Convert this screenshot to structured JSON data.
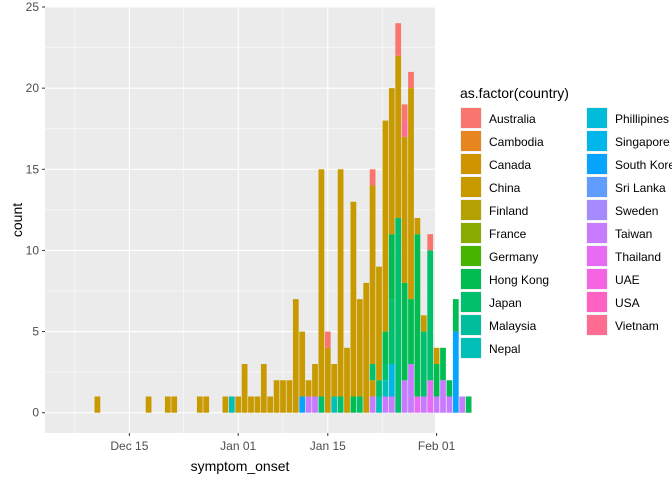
{
  "chart_data": {
    "type": "bar",
    "stacked": true,
    "xlabel": "symptom_onset",
    "ylabel": "count",
    "ylim": [
      -1.25,
      25
    ],
    "yticks": [
      0,
      5,
      10,
      15,
      20,
      25
    ],
    "xlim": [
      "2019-12-09",
      "2020-02-04"
    ],
    "xticks": [
      {
        "date": "2019-12-15",
        "label": "Dec 15"
      },
      {
        "date": "2020-01-01",
        "label": "Jan 01"
      },
      {
        "date": "2020-01-15",
        "label": "Jan 15"
      },
      {
        "date": "2020-02-01",
        "label": "Feb 01"
      }
    ],
    "legend_title": "as.factor(country)",
    "legend_placement": "right",
    "grid": true,
    "countries": [
      "Australia",
      "Cambodia",
      "Canada",
      "China",
      "Finland",
      "France",
      "Germany",
      "Hong Kong",
      "Japan",
      "Malaysia",
      "Nepal",
      "Phillipines",
      "Singapore",
      "South Korea",
      "Sri Lanka",
      "Sweden",
      "Taiwan",
      "Thailand",
      "UAE",
      "USA",
      "Vietnam"
    ],
    "colors": {
      "Australia": "#F8766D",
      "Cambodia": "#E7851E",
      "Canada": "#D09400",
      "China": "#C89A00",
      "Finland": "#B2A100",
      "France": "#8AAB00",
      "Germany": "#45B500",
      "Hong Kong": "#00BC51",
      "Japan": "#00C06B",
      "Malaysia": "#00BD9C",
      "Nepal": "#00C0B8",
      "Phillipines": "#00BCD8",
      "Singapore": "#00B6EB",
      "South Korea": "#06A4FF",
      "Sri Lanka": "#619CFF",
      "Sweden": "#A58AFF",
      "Taiwan": "#C77CFF",
      "Thailand": "#E76BF3",
      "UAE": "#F564E3",
      "USA": "#FF61C3",
      "Vietnam": "#FF6C91"
    },
    "series": [
      {
        "date": "2019-12-10",
        "segments": [
          [
            "China",
            1
          ]
        ]
      },
      {
        "date": "2019-12-18",
        "segments": [
          [
            "China",
            1
          ]
        ]
      },
      {
        "date": "2019-12-21",
        "segments": [
          [
            "China",
            1
          ]
        ]
      },
      {
        "date": "2019-12-22",
        "segments": [
          [
            "China",
            1
          ]
        ]
      },
      {
        "date": "2019-12-26",
        "segments": [
          [
            "China",
            1
          ]
        ]
      },
      {
        "date": "2019-12-27",
        "segments": [
          [
            "China",
            1
          ]
        ]
      },
      {
        "date": "2019-12-30",
        "segments": [
          [
            "China",
            1
          ]
        ]
      },
      {
        "date": "2019-12-31",
        "segments": [
          [
            "Nepal",
            1
          ]
        ]
      },
      {
        "date": "2020-01-01",
        "segments": [
          [
            "China",
            1
          ]
        ]
      },
      {
        "date": "2020-01-02",
        "segments": [
          [
            "China",
            3
          ]
        ]
      },
      {
        "date": "2020-01-03",
        "segments": [
          [
            "China",
            1
          ]
        ]
      },
      {
        "date": "2020-01-04",
        "segments": [
          [
            "China",
            1
          ]
        ]
      },
      {
        "date": "2020-01-05",
        "segments": [
          [
            "China",
            3
          ]
        ]
      },
      {
        "date": "2020-01-06",
        "segments": [
          [
            "China",
            1
          ]
        ]
      },
      {
        "date": "2020-01-07",
        "segments": [
          [
            "China",
            2
          ]
        ]
      },
      {
        "date": "2020-01-08",
        "segments": [
          [
            "China",
            2
          ]
        ]
      },
      {
        "date": "2020-01-09",
        "segments": [
          [
            "China",
            2
          ]
        ]
      },
      {
        "date": "2020-01-10",
        "segments": [
          [
            "China",
            7
          ]
        ]
      },
      {
        "date": "2020-01-11",
        "segments": [
          [
            "South Korea",
            1
          ],
          [
            "China",
            4
          ]
        ]
      },
      {
        "date": "2020-01-12",
        "segments": [
          [
            "Taiwan",
            1
          ],
          [
            "China",
            1
          ]
        ]
      },
      {
        "date": "2020-01-13",
        "segments": [
          [
            "Taiwan",
            1
          ],
          [
            "China",
            2
          ]
        ]
      },
      {
        "date": "2020-01-14",
        "segments": [
          [
            "Japan",
            1
          ],
          [
            "China",
            14
          ]
        ]
      },
      {
        "date": "2020-01-15",
        "segments": [
          [
            "China",
            4
          ],
          [
            "Australia",
            1
          ]
        ]
      },
      {
        "date": "2020-01-16",
        "segments": [
          [
            "Nepal",
            1
          ],
          [
            "China",
            2
          ]
        ]
      },
      {
        "date": "2020-01-17",
        "segments": [
          [
            "Japan",
            1
          ],
          [
            "China",
            14
          ]
        ]
      },
      {
        "date": "2020-01-18",
        "segments": [
          [
            "China",
            4
          ]
        ]
      },
      {
        "date": "2020-01-19",
        "segments": [
          [
            "Hong Kong",
            1
          ],
          [
            "China",
            12
          ]
        ]
      },
      {
        "date": "2020-01-20",
        "segments": [
          [
            "Japan",
            1
          ],
          [
            "China",
            6
          ]
        ]
      },
      {
        "date": "2020-01-21",
        "segments": [
          [
            "China",
            8
          ]
        ]
      },
      {
        "date": "2020-01-22",
        "segments": [
          [
            "Taiwan",
            1
          ],
          [
            "China",
            1
          ],
          [
            "Japan",
            1
          ],
          [
            "China",
            11
          ],
          [
            "Australia",
            1
          ]
        ]
      },
      {
        "date": "2020-01-23",
        "segments": [
          [
            "Nepal",
            1
          ],
          [
            "Japan",
            1
          ],
          [
            "China",
            7
          ]
        ]
      },
      {
        "date": "2020-01-24",
        "segments": [
          [
            "Taiwan",
            1
          ],
          [
            "Nepal",
            1
          ],
          [
            "Japan",
            1
          ],
          [
            "Hong Kong",
            2
          ],
          [
            "China",
            13
          ]
        ]
      },
      {
        "date": "2020-01-25",
        "segments": [
          [
            "Taiwan",
            1
          ],
          [
            "Singapore",
            2
          ],
          [
            "Japan",
            4
          ],
          [
            "Hong Kong",
            4
          ],
          [
            "China",
            9
          ]
        ]
      },
      {
        "date": "2020-01-26",
        "segments": [
          [
            "Japan",
            12
          ],
          [
            "China",
            10
          ],
          [
            "Australia",
            2
          ]
        ]
      },
      {
        "date": "2020-01-27",
        "segments": [
          [
            "Taiwan",
            2
          ],
          [
            "Hong Kong",
            6
          ],
          [
            "China",
            9
          ],
          [
            "Vietnam",
            1
          ],
          [
            "Australia",
            1
          ]
        ]
      },
      {
        "date": "2020-01-28",
        "segments": [
          [
            "Taiwan",
            3
          ],
          [
            "Hong Kong",
            4
          ],
          [
            "China",
            13
          ],
          [
            "Australia",
            1
          ]
        ]
      },
      {
        "date": "2020-01-29",
        "segments": [
          [
            "Thailand",
            1
          ],
          [
            "Hong Kong",
            10
          ],
          [
            "China",
            1
          ]
        ]
      },
      {
        "date": "2020-01-30",
        "segments": [
          [
            "Taiwan",
            1
          ],
          [
            "Japan",
            4
          ],
          [
            "China",
            1
          ]
        ]
      },
      {
        "date": "2020-01-31",
        "segments": [
          [
            "Thailand",
            2
          ],
          [
            "Japan",
            8
          ],
          [
            "Australia",
            1
          ]
        ]
      },
      {
        "date": "2020-02-01",
        "segments": [
          [
            "Taiwan",
            1
          ],
          [
            "Hong Kong",
            2
          ],
          [
            "China",
            1
          ]
        ]
      },
      {
        "date": "2020-02-02",
        "segments": [
          [
            "Taiwan",
            2
          ],
          [
            "Hong Kong",
            2
          ]
        ]
      },
      {
        "date": "2020-02-03",
        "segments": [
          [
            "Taiwan",
            1
          ],
          [
            "Hong Kong",
            1
          ]
        ]
      },
      {
        "date": "2020-02-04",
        "segments": [
          [
            "South Korea",
            5
          ],
          [
            "Hong Kong",
            2
          ]
        ]
      },
      {
        "date": "2020-02-05",
        "segments": [
          [
            "Taiwan",
            1
          ]
        ]
      },
      {
        "date": "2020-02-06",
        "segments": [
          [
            "Hong Kong",
            1
          ]
        ]
      }
    ]
  }
}
